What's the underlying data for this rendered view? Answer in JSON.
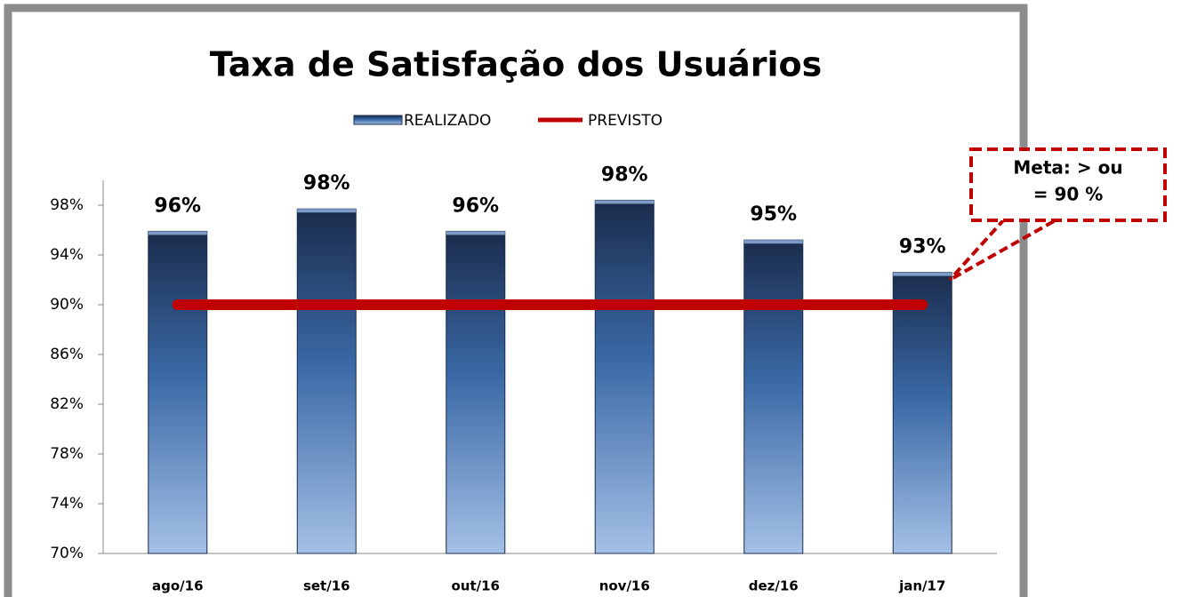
{
  "chart_data": {
    "type": "bar",
    "title": "Taxa de Satisfação dos Usuários",
    "categories": [
      "ago/16",
      "set/16",
      "out/16",
      "nov/16",
      "dez/16",
      "jan/17"
    ],
    "series": [
      {
        "name": "REALIZADO",
        "type": "bar",
        "color": "#2f5a94",
        "values": [
          95.9,
          97.7,
          95.9,
          98.4,
          95.2,
          92.6
        ],
        "value_labels": [
          "96%",
          "98%",
          "96%",
          "98%",
          "95%",
          "93%"
        ]
      },
      {
        "name": "PREVISTO",
        "type": "line",
        "color": "#c00000",
        "values": [
          90,
          90,
          90,
          90,
          90,
          90
        ]
      }
    ],
    "ylim": [
      70,
      100
    ],
    "yticks": [
      {
        "value": 70,
        "label": "70%"
      },
      {
        "value": 74,
        "label": "74%"
      },
      {
        "value": 78,
        "label": "78%"
      },
      {
        "value": 82,
        "label": "82%"
      },
      {
        "value": 86,
        "label": "86%"
      },
      {
        "value": 90,
        "label": "90%"
      },
      {
        "value": 94,
        "label": "94%"
      },
      {
        "value": 98,
        "label": "98%"
      }
    ],
    "grid": false,
    "legend": "top",
    "annotation": [
      "Meta: > ou",
      "= 90 %"
    ]
  }
}
